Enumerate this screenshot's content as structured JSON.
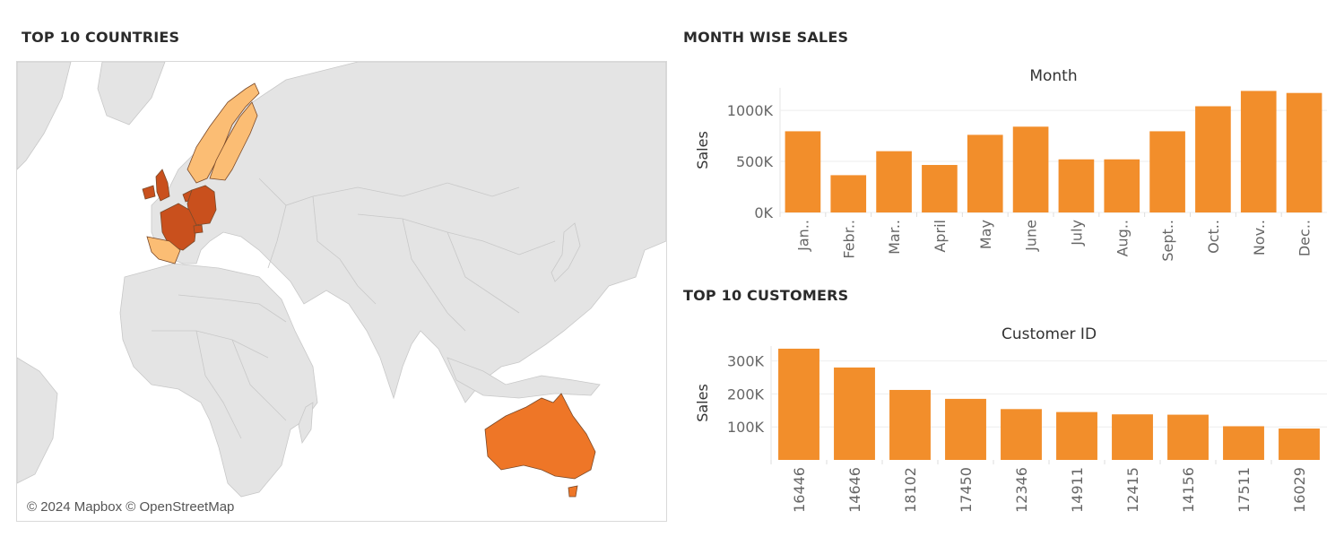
{
  "map_section": {
    "title": "TOP 10 COUNTRIES",
    "attribution": "© 2024 Mapbox © OpenStreetMap",
    "colors": {
      "land": "#e4e4e4",
      "border": "#c8c8c8",
      "highlight_dark": "#c9501d",
      "highlight_mid": "#ee7627",
      "highlight_light": "#fbbd74"
    },
    "highlighted_countries": [
      "Australia",
      "France",
      "Germany",
      "Netherlands",
      "United Kingdom",
      "Ireland",
      "Switzerland",
      "Norway",
      "Sweden",
      "Spain"
    ]
  },
  "month_section": {
    "title": "MONTH WISE SALES"
  },
  "customer_section": {
    "title": "TOP 10 CUSTOMERS"
  },
  "chart_data": [
    {
      "type": "bar",
      "title": "Month",
      "ylabel": "Sales",
      "categories": [
        "Jan..",
        "Febr..",
        "Mar..",
        "April",
        "May",
        "June",
        "July",
        "Aug..",
        "Sept..",
        "Oct..",
        "Nov..",
        "Dec.."
      ],
      "values": [
        795000,
        365000,
        600000,
        465000,
        760000,
        840000,
        520000,
        520000,
        795000,
        1040000,
        1190000,
        1170000
      ],
      "yticks": [
        0,
        500000,
        1000000
      ],
      "ytick_labels": [
        "0K",
        "500K",
        "1000K"
      ],
      "ylim": [
        0,
        1220000
      ],
      "bar_color": "#f28e2b",
      "grid": true
    },
    {
      "type": "bar",
      "title": "Customer ID",
      "ylabel": "Sales",
      "categories": [
        "16446",
        "14646",
        "18102",
        "17450",
        "12346",
        "14911",
        "12415",
        "14156",
        "17511",
        "16029"
      ],
      "values": [
        337000,
        280000,
        212000,
        185000,
        154000,
        145000,
        138000,
        137000,
        102000,
        95000
      ],
      "yticks": [
        100000,
        200000,
        300000
      ],
      "ytick_labels": [
        "100K",
        "200K",
        "300K"
      ],
      "ylim": [
        0,
        345000
      ],
      "bar_color": "#f28e2b",
      "grid": true
    }
  ]
}
